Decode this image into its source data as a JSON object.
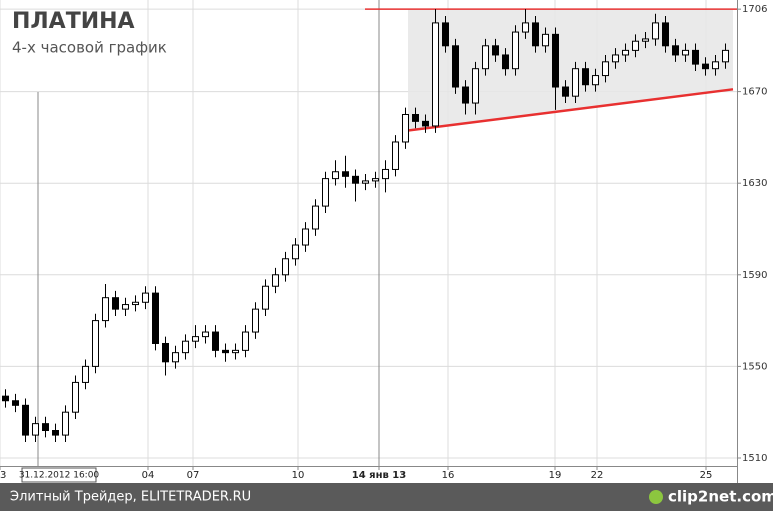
{
  "chart_data": {
    "type": "candlestick",
    "title": "ПЛАТИНА",
    "subtitle": "4-х часовой график",
    "footer": "Элитный Трейдер, ELITETRADER.RU",
    "logo": "clip2net.com",
    "xlim": [
      0,
      147.4
    ],
    "ylim": [
      1506.5,
      1710
    ],
    "yticks": [
      1510,
      1550,
      1590,
      1630,
      1670,
      1706
    ],
    "xticks": [
      {
        "value": 0,
        "label": "3"
      },
      {
        "value": 29.6,
        "label": "04"
      },
      {
        "value": 38.6,
        "label": "07"
      },
      {
        "value": 59.6,
        "label": "10"
      },
      {
        "value": 75.8,
        "label": "14 янв 13"
      },
      {
        "value": 89.6,
        "label": "16"
      },
      {
        "value": 111,
        "label": "19"
      },
      {
        "value": 119.4,
        "label": "22"
      },
      {
        "value": 141.2,
        "label": "25"
      }
    ],
    "cursor": {
      "value": 7.6,
      "label": "31.12.2012 16:00"
    },
    "grid": true,
    "up_color": "#ffffff",
    "down_color": "#000000",
    "line_color": "#e83030",
    "shade_color": "#e6e6e6",
    "x": [
      1,
      3,
      5,
      7,
      9,
      11,
      13,
      15,
      17,
      19,
      21,
      23,
      25,
      27,
      29,
      31,
      33,
      35,
      37,
      39,
      41,
      43,
      45,
      47,
      49,
      51,
      53,
      55,
      57,
      59,
      61,
      63,
      65,
      67,
      69,
      71,
      73,
      75,
      77,
      79,
      81,
      83,
      85,
      87,
      89,
      91,
      93,
      95,
      97,
      99,
      101,
      103,
      105,
      107,
      109,
      111,
      113,
      115,
      117,
      119,
      121,
      123,
      125,
      127,
      129,
      131,
      133,
      135,
      137,
      139,
      141,
      143,
      145
    ],
    "open": [
      1537,
      1535,
      1533,
      1520,
      1525,
      1522,
      1520,
      1530,
      1543,
      1550,
      1570,
      1580,
      1575,
      1577,
      1578,
      1582,
      1560,
      1552,
      1556,
      1561,
      1563,
      1565,
      1557,
      1556,
      1557,
      1565,
      1575,
      1585,
      1590,
      1597,
      1603,
      1610,
      1620,
      1632,
      1635,
      1633,
      1630,
      1631,
      1632,
      1636,
      1648,
      1660,
      1657,
      1655,
      1700,
      1690,
      1672,
      1665,
      1680,
      1690,
      1686,
      1680,
      1696,
      1700,
      1690,
      1695,
      1672,
      1668,
      1680,
      1673,
      1677,
      1683,
      1686,
      1688,
      1692,
      1693,
      1700,
      1690,
      1686,
      1688,
      1682,
      1680,
      1683
    ],
    "high": [
      1540,
      1538,
      1536,
      1528,
      1528,
      1525,
      1533,
      1546,
      1553,
      1573,
      1586,
      1583,
      1580,
      1581,
      1585,
      1585,
      1563,
      1559,
      1564,
      1568,
      1568,
      1568,
      1560,
      1560,
      1568,
      1578,
      1588,
      1593,
      1600,
      1606,
      1613,
      1623,
      1635,
      1640,
      1642,
      1636,
      1634,
      1635,
      1640,
      1651,
      1663,
      1663,
      1660,
      1706,
      1703,
      1693,
      1675,
      1683,
      1693,
      1693,
      1689,
      1699,
      1706,
      1703,
      1698,
      1698,
      1675,
      1683,
      1683,
      1680,
      1686,
      1689,
      1691,
      1695,
      1696,
      1704,
      1703,
      1693,
      1691,
      1691,
      1685,
      1686,
      1691
    ],
    "low": [
      1532,
      1530,
      1517,
      1517,
      1519,
      1517,
      1517,
      1527,
      1540,
      1547,
      1567,
      1572,
      1572,
      1574,
      1575,
      1557,
      1546,
      1549,
      1553,
      1558,
      1560,
      1554,
      1552,
      1553,
      1554,
      1562,
      1572,
      1582,
      1587,
      1594,
      1600,
      1607,
      1617,
      1629,
      1628,
      1622,
      1627,
      1628,
      1626,
      1633,
      1645,
      1654,
      1652,
      1652,
      1687,
      1669,
      1660,
      1660,
      1677,
      1683,
      1677,
      1677,
      1693,
      1687,
      1687,
      1662,
      1665,
      1665,
      1670,
      1670,
      1674,
      1680,
      1683,
      1685,
      1689,
      1690,
      1687,
      1683,
      1683,
      1679,
      1677,
      1677,
      1680
    ],
    "close": [
      1535,
      1533,
      1520,
      1525,
      1522,
      1520,
      1530,
      1543,
      1550,
      1570,
      1580,
      1575,
      1577,
      1578,
      1582,
      1560,
      1552,
      1556,
      1561,
      1563,
      1565,
      1557,
      1556,
      1557,
      1565,
      1575,
      1585,
      1590,
      1597,
      1603,
      1610,
      1620,
      1632,
      1635,
      1633,
      1630,
      1631,
      1632,
      1636,
      1648,
      1660,
      1657,
      1655,
      1700,
      1690,
      1672,
      1665,
      1680,
      1690,
      1686,
      1680,
      1696,
      1700,
      1690,
      1695,
      1672,
      1668,
      1680,
      1673,
      1677,
      1683,
      1686,
      1688,
      1692,
      1693,
      1700,
      1690,
      1686,
      1688,
      1682,
      1680,
      1683,
      1688
    ],
    "lines": [
      {
        "x": [
          73,
          147.4
        ],
        "y": [
          1706,
          1706
        ]
      },
      {
        "x": [
          81.6,
          146.6
        ],
        "y": [
          1653,
          1671
        ]
      }
    ]
  }
}
